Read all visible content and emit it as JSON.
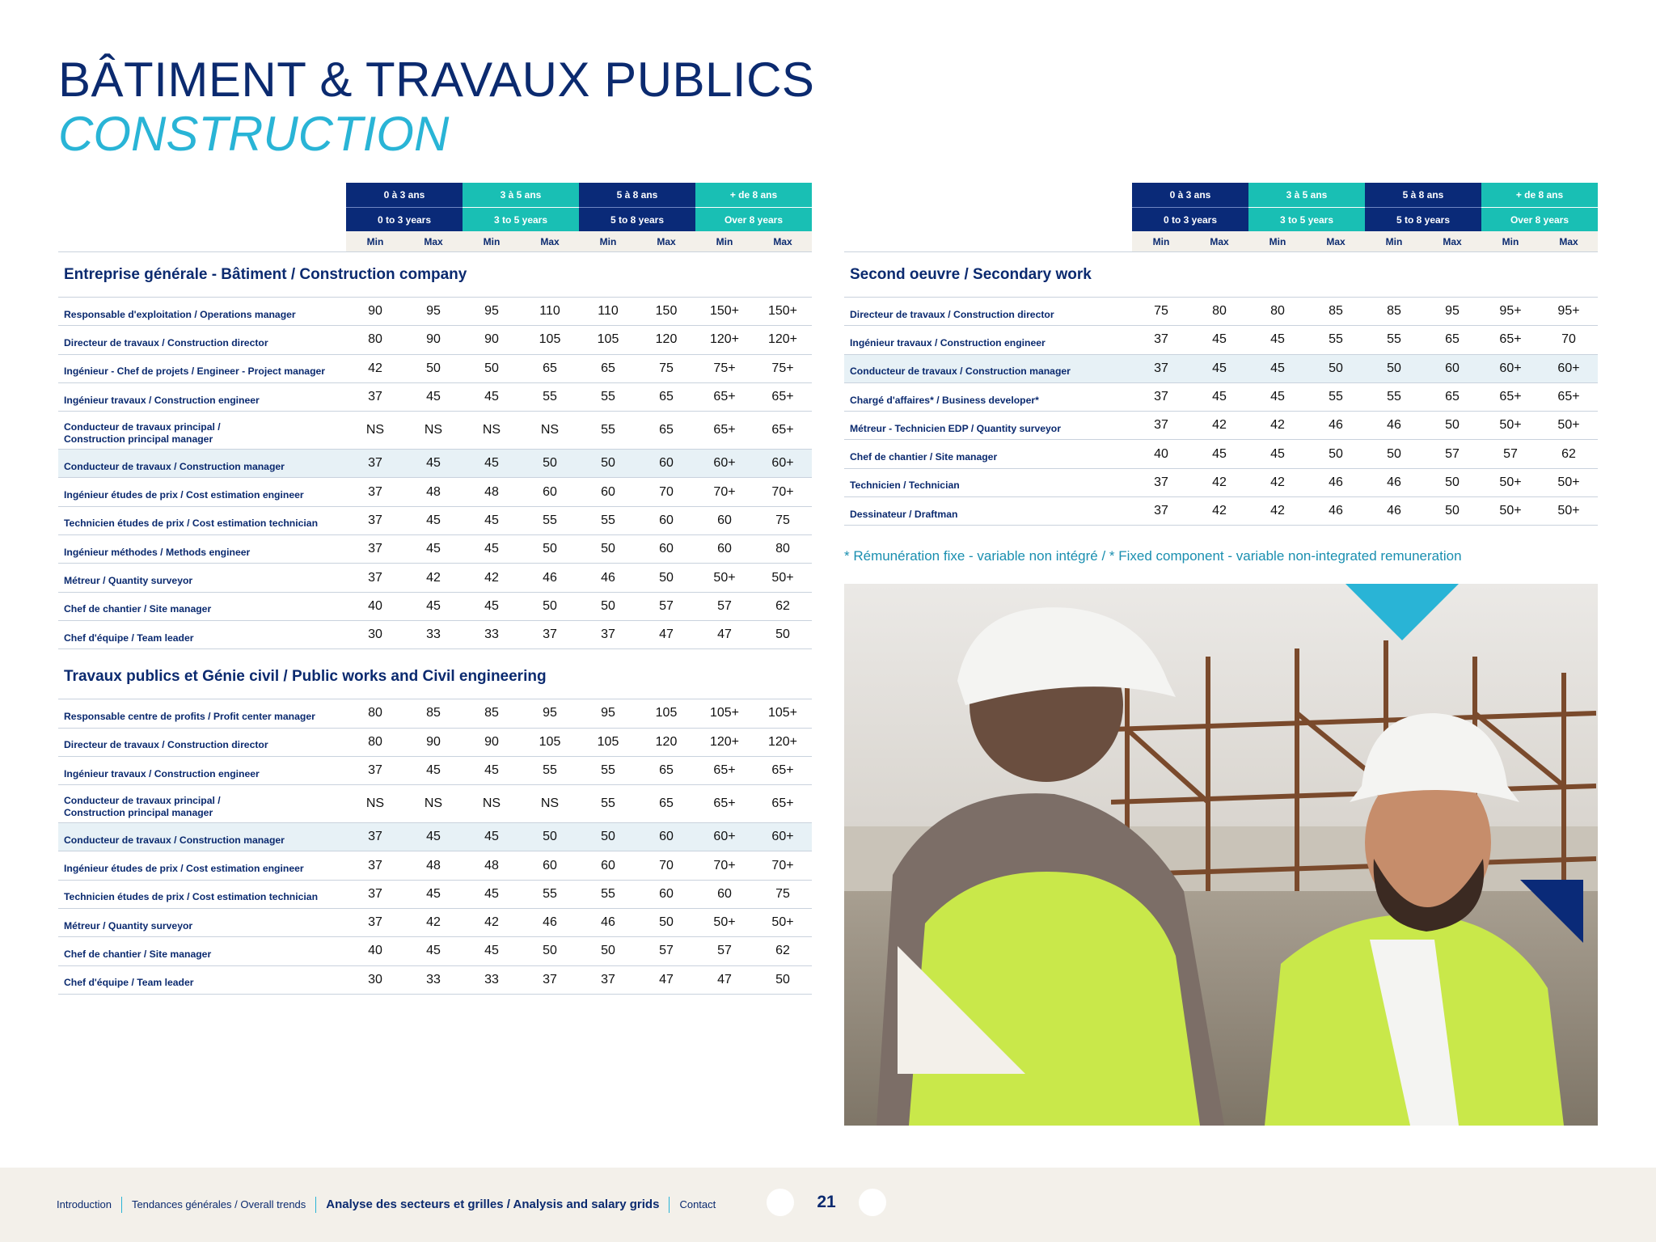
{
  "title": {
    "main": "BÂTIMENT & TRAVAUX PUBLICS",
    "sub": "CONSTRUCTION"
  },
  "columns": {
    "groups": [
      {
        "fr": "0 à 3 ans",
        "en": "0 to 3 years",
        "color": "#0a2a78"
      },
      {
        "fr": "3 à 5 ans",
        "en": "3 to 5 years",
        "color": "#19bfb4"
      },
      {
        "fr": "5 à 8 ans",
        "en": "5 to 8 years",
        "color": "#0a2a78"
      },
      {
        "fr": "+ de 8 ans",
        "en": "Over 8 years",
        "color": "#19bfb4"
      }
    ],
    "min": "Min",
    "max": "Max"
  },
  "left_sections": [
    {
      "title": "Entreprise générale - Bâtiment / Construction company",
      "rows": [
        {
          "label": [
            "Responsable d'exploitation / Operations manager"
          ],
          "values": [
            "90",
            "95",
            "95",
            "110",
            "110",
            "150",
            "150+",
            "150+"
          ]
        },
        {
          "label": [
            "Directeur de travaux / Construction director"
          ],
          "values": [
            "80",
            "90",
            "90",
            "105",
            "105",
            "120",
            "120+",
            "120+"
          ]
        },
        {
          "label": [
            "Ingénieur - Chef de projets / Engineer - Project manager"
          ],
          "values": [
            "42",
            "50",
            "50",
            "65",
            "65",
            "75",
            "75+",
            "75+"
          ]
        },
        {
          "label": [
            "Ingénieur travaux / Construction engineer"
          ],
          "values": [
            "37",
            "45",
            "45",
            "55",
            "55",
            "65",
            "65+",
            "65+"
          ]
        },
        {
          "label": [
            "Conducteur de travaux principal /",
            "Construction principal manager"
          ],
          "values": [
            "NS",
            "NS",
            "NS",
            "NS",
            "55",
            "65",
            "65+",
            "65+"
          ]
        },
        {
          "label": [
            "Conducteur de travaux / Construction manager"
          ],
          "values": [
            "37",
            "45",
            "45",
            "50",
            "50",
            "60",
            "60+",
            "60+"
          ],
          "highlight": true
        },
        {
          "label": [
            "Ingénieur études de prix / Cost estimation engineer"
          ],
          "values": [
            "37",
            "48",
            "48",
            "60",
            "60",
            "70",
            "70+",
            "70+"
          ]
        },
        {
          "label": [
            "Technicien études de prix / Cost estimation technician"
          ],
          "values": [
            "37",
            "45",
            "45",
            "55",
            "55",
            "60",
            "60",
            "75"
          ]
        },
        {
          "label": [
            "Ingénieur méthodes / Methods engineer"
          ],
          "values": [
            "37",
            "45",
            "45",
            "50",
            "50",
            "60",
            "60",
            "80"
          ]
        },
        {
          "label": [
            "Métreur / Quantity surveyor"
          ],
          "values": [
            "37",
            "42",
            "42",
            "46",
            "46",
            "50",
            "50+",
            "50+"
          ]
        },
        {
          "label": [
            "Chef de chantier / Site manager"
          ],
          "values": [
            "40",
            "45",
            "45",
            "50",
            "50",
            "57",
            "57",
            "62"
          ]
        },
        {
          "label": [
            "Chef d'équipe / Team leader"
          ],
          "values": [
            "30",
            "33",
            "33",
            "37",
            "37",
            "47",
            "47",
            "50"
          ]
        }
      ]
    },
    {
      "title": "Travaux publics et Génie civil / Public works and Civil engineering",
      "rows": [
        {
          "label": [
            "Responsable centre de profits / Profit center manager"
          ],
          "values": [
            "80",
            "85",
            "85",
            "95",
            "95",
            "105",
            "105+",
            "105+"
          ]
        },
        {
          "label": [
            "Directeur de travaux / Construction director"
          ],
          "values": [
            "80",
            "90",
            "90",
            "105",
            "105",
            "120",
            "120+",
            "120+"
          ]
        },
        {
          "label": [
            "Ingénieur travaux / Construction engineer"
          ],
          "values": [
            "37",
            "45",
            "45",
            "55",
            "55",
            "65",
            "65+",
            "65+"
          ]
        },
        {
          "label": [
            "Conducteur de travaux principal /",
            "Construction principal manager"
          ],
          "values": [
            "NS",
            "NS",
            "NS",
            "NS",
            "55",
            "65",
            "65+",
            "65+"
          ]
        },
        {
          "label": [
            "Conducteur de travaux / Construction manager"
          ],
          "values": [
            "37",
            "45",
            "45",
            "50",
            "50",
            "60",
            "60+",
            "60+"
          ],
          "highlight": true
        },
        {
          "label": [
            "Ingénieur études de prix / Cost estimation engineer"
          ],
          "values": [
            "37",
            "48",
            "48",
            "60",
            "60",
            "70",
            "70+",
            "70+"
          ]
        },
        {
          "label": [
            "Technicien études de prix / Cost estimation technician"
          ],
          "values": [
            "37",
            "45",
            "45",
            "55",
            "55",
            "60",
            "60",
            "75"
          ]
        },
        {
          "label": [
            "Métreur / Quantity surveyor"
          ],
          "values": [
            "37",
            "42",
            "42",
            "46",
            "46",
            "50",
            "50+",
            "50+"
          ]
        },
        {
          "label": [
            "Chef de chantier / Site manager"
          ],
          "values": [
            "40",
            "45",
            "45",
            "50",
            "50",
            "57",
            "57",
            "62"
          ]
        },
        {
          "label": [
            "Chef d'équipe / Team leader"
          ],
          "values": [
            "30",
            "33",
            "33",
            "37",
            "37",
            "47",
            "47",
            "50"
          ]
        }
      ]
    }
  ],
  "right_sections": [
    {
      "title": "Second oeuvre / Secondary work",
      "rows": [
        {
          "label": [
            "Directeur de travaux / Construction director"
          ],
          "values": [
            "75",
            "80",
            "80",
            "85",
            "85",
            "95",
            "95+",
            "95+"
          ]
        },
        {
          "label": [
            "Ingénieur travaux / Construction engineer"
          ],
          "values": [
            "37",
            "45",
            "45",
            "55",
            "55",
            "65",
            "65+",
            "70"
          ]
        },
        {
          "label": [
            "Conducteur de travaux / Construction manager"
          ],
          "values": [
            "37",
            "45",
            "45",
            "50",
            "50",
            "60",
            "60+",
            "60+"
          ],
          "highlight": true
        },
        {
          "label": [
            "Chargé d'affaires* / Business developer*"
          ],
          "values": [
            "37",
            "45",
            "45",
            "55",
            "55",
            "65",
            "65+",
            "65+"
          ]
        },
        {
          "label": [
            "Métreur - Technicien EDP / Quantity surveyor"
          ],
          "values": [
            "37",
            "42",
            "42",
            "46",
            "46",
            "50",
            "50+",
            "50+"
          ]
        },
        {
          "label": [
            "Chef de chantier / Site manager"
          ],
          "values": [
            "40",
            "45",
            "45",
            "50",
            "50",
            "57",
            "57",
            "62"
          ]
        },
        {
          "label": [
            "Technicien / Technician"
          ],
          "values": [
            "37",
            "42",
            "42",
            "46",
            "46",
            "50",
            "50+",
            "50+"
          ]
        },
        {
          "label": [
            "Dessinateur / Draftman"
          ],
          "values": [
            "37",
            "42",
            "42",
            "46",
            "46",
            "50",
            "50+",
            "50+"
          ]
        }
      ]
    }
  ],
  "footnote": "* Rémunération fixe - variable non intégré / * Fixed component - variable non-integrated remuneration",
  "footer": {
    "nav": [
      {
        "label": "Introduction",
        "active": false
      },
      {
        "label": "Tendances générales / Overall trends",
        "active": false
      },
      {
        "label": "Analyse des secteurs et grilles / Analysis and salary grids",
        "active": true
      },
      {
        "label": "Contact",
        "active": false
      }
    ],
    "page_number": "21"
  },
  "colors": {
    "navy": "#0a2a78",
    "teal": "#19bfb4",
    "cyan": "#29b4d6",
    "cream": "#f3f0ea",
    "highlight_row": "#e7f1f6"
  }
}
